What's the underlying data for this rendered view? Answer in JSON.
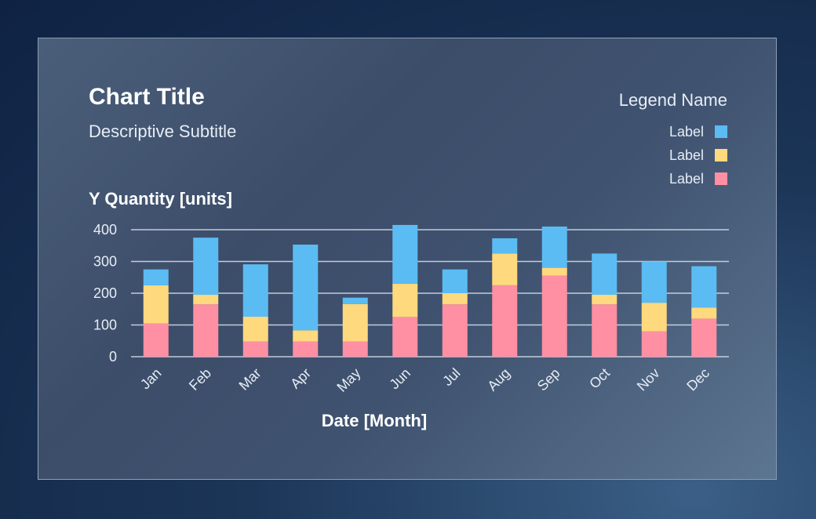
{
  "chart_data": {
    "type": "bar",
    "stacked": true,
    "title": "Chart Title",
    "subtitle": "Descriptive Subtitle",
    "ylabel": "Y Quantity [units]",
    "xlabel": "Date [Month]",
    "ylim": [
      0,
      400
    ],
    "yticks": [
      "0",
      "100",
      "200",
      "300",
      "400"
    ],
    "grid": true,
    "legend_position": "top-right",
    "legend_title": "Legend Name",
    "categories": [
      "Jan",
      "Feb",
      "Mar",
      "Apr",
      "May",
      "Jun",
      "Jul",
      "Aug",
      "Sep",
      "Oct",
      "Nov",
      "Dec"
    ],
    "series": [
      {
        "name": "Label",
        "color": "#ff8fa3",
        "values": [
          105,
          165,
          48,
          48,
          48,
          125,
          165,
          225,
          255,
          165,
          80,
          120
        ]
      },
      {
        "name": "Label",
        "color": "#ffd97d",
        "values": [
          120,
          30,
          78,
          35,
          118,
          105,
          35,
          100,
          25,
          30,
          90,
          35
        ]
      },
      {
        "name": "Label",
        "color": "#5bbcf3",
        "values": [
          50,
          180,
          165,
          270,
          20,
          185,
          75,
          48,
          130,
          130,
          130,
          130
        ]
      }
    ]
  }
}
